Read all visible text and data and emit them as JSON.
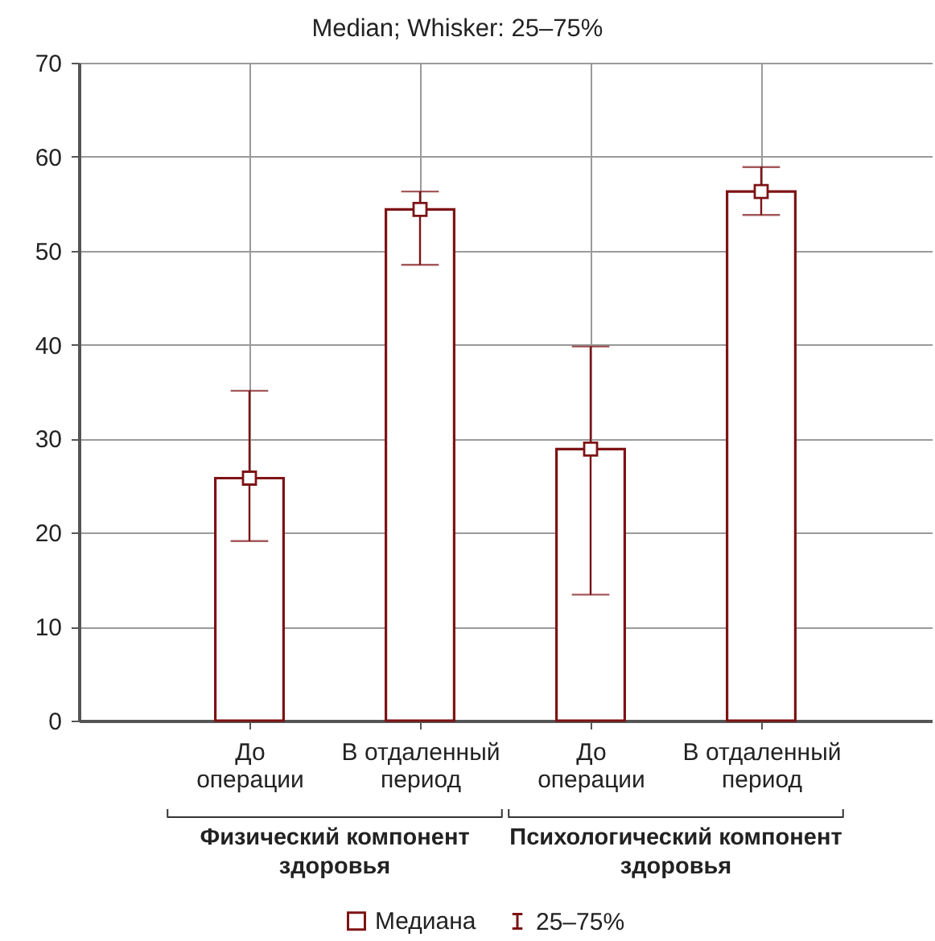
{
  "chart_data": {
    "type": "bar",
    "title": "Median; Whisker: 25–75%",
    "categories": [
      "До операции",
      "В отдаленный период",
      "До операции",
      "В отдаленный период"
    ],
    "series": [
      {
        "color": "#7d1315",
        "values": [
          25.8,
          54.4,
          28.9,
          56.3
        ],
        "errors": [
          [
            19.1,
            35.1
          ],
          [
            48.5,
            56.3
          ],
          [
            13.4,
            39.8
          ],
          [
            53.8,
            58.9
          ]
        ]
      },
      {
        "name": "Медиана",
        "type": "scatter",
        "marker": "square",
        "color": "#7d1315",
        "values": [
          25.8,
          54.4,
          28.9,
          56.3
        ]
      }
    ],
    "ylim": [
      0,
      70
    ],
    "yticks": [
      0,
      10,
      20,
      30,
      40,
      50,
      60,
      70
    ],
    "grid": true,
    "legend": "bottom",
    "annotations": [
      "Физический компонент здоровья",
      "Психологический компонент здоровья",
      "25–75%"
    ]
  }
}
